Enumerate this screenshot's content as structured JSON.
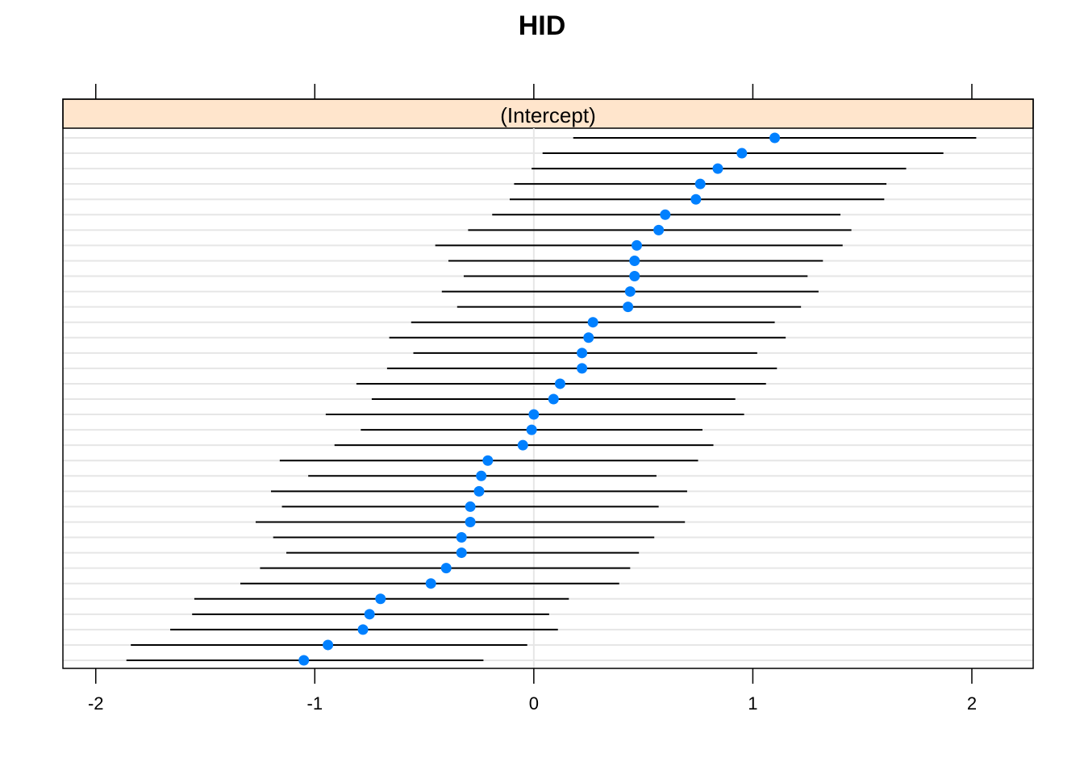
{
  "chart_data": {
    "type": "dotplot-errorbar",
    "title": "HID",
    "panel_label": "(Intercept)",
    "xlim": [
      -2.15,
      2.28
    ],
    "x_ticks": [
      -2,
      -1,
      0,
      1,
      2
    ],
    "x_tick_labels": [
      "-2",
      "-1",
      "0",
      "1",
      "2"
    ],
    "grid": true,
    "vertical_reference_line": 0,
    "series": [
      {
        "estimate": [
          1.1,
          0.95,
          0.84,
          0.76,
          0.74,
          0.6,
          0.57,
          0.47,
          0.46,
          0.46,
          0.44,
          0.43,
          0.27,
          0.25,
          0.22,
          0.22,
          0.12,
          0.09,
          0.0,
          -0.01,
          -0.05,
          -0.21,
          -0.24,
          -0.25,
          -0.29,
          -0.29,
          -0.33,
          -0.33,
          -0.4,
          -0.47,
          -0.7,
          -0.75,
          -0.78,
          -0.94,
          -1.05
        ],
        "lower": [
          0.18,
          0.04,
          -0.01,
          -0.09,
          -0.11,
          -0.19,
          -0.3,
          -0.45,
          -0.39,
          -0.32,
          -0.42,
          -0.35,
          -0.56,
          -0.66,
          -0.55,
          -0.67,
          -0.81,
          -0.74,
          -0.95,
          -0.79,
          -0.91,
          -1.16,
          -1.03,
          -1.2,
          -1.15,
          -1.27,
          -1.19,
          -1.13,
          -1.25,
          -1.34,
          -1.55,
          -1.56,
          -1.66,
          -1.84,
          -1.86
        ],
        "upper": [
          2.02,
          1.87,
          1.7,
          1.61,
          1.6,
          1.4,
          1.45,
          1.41,
          1.32,
          1.25,
          1.3,
          1.22,
          1.1,
          1.15,
          1.02,
          1.11,
          1.06,
          0.92,
          0.96,
          0.77,
          0.82,
          0.75,
          0.56,
          0.7,
          0.57,
          0.69,
          0.55,
          0.48,
          0.44,
          0.39,
          0.16,
          0.07,
          0.11,
          -0.03,
          -0.23
        ]
      }
    ]
  },
  "colors": {
    "strip_bg": "#ffe5cc",
    "point": "#0080ff",
    "grid": "#e6e6e6",
    "errorbar": "#000000",
    "frame": "#000000"
  }
}
